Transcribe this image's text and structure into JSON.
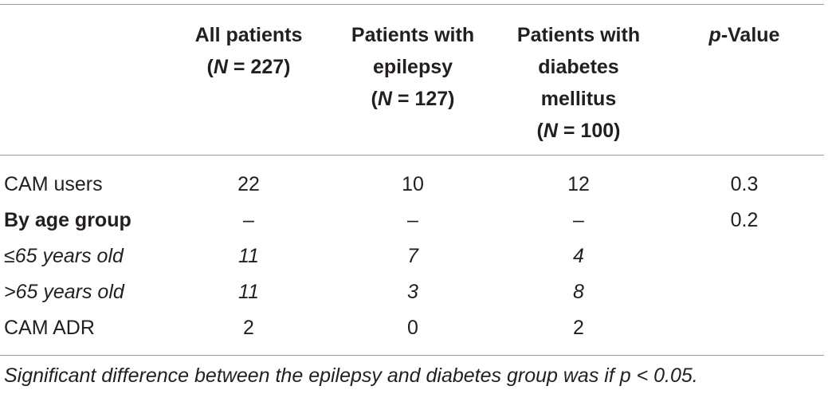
{
  "table": {
    "headers": [
      {
        "line1": "All patients",
        "line2_prefix": "(",
        "line2_var": "N",
        "line2_rest": " = 227)"
      },
      {
        "line1": "Patients with",
        "line2": "epilepsy",
        "line3_prefix": "(",
        "line3_var": "N",
        "line3_rest": " = 127)"
      },
      {
        "line1": "Patients with",
        "line2": "diabetes",
        "line3": "mellitus",
        "line4_prefix": "(",
        "line4_var": "N",
        "line4_rest": " = 100)"
      },
      {
        "var": "p",
        "rest": "-Value"
      }
    ],
    "rows": [
      {
        "label": "CAM users",
        "values": [
          "22",
          "10",
          "12",
          "0.3"
        ]
      },
      {
        "label": "By age group",
        "values": [
          "–",
          "–",
          "–",
          "0.2"
        ]
      },
      {
        "label": "≤65 years old",
        "values": [
          "11",
          "7",
          "4",
          ""
        ]
      },
      {
        "label": ">65 years old",
        "values": [
          "11",
          "3",
          "8",
          ""
        ]
      },
      {
        "label": "CAM ADR",
        "values": [
          "2",
          "0",
          "2",
          ""
        ]
      }
    ]
  },
  "footnote": "Significant difference between the epilepsy and diabetes group was if p < 0.05."
}
